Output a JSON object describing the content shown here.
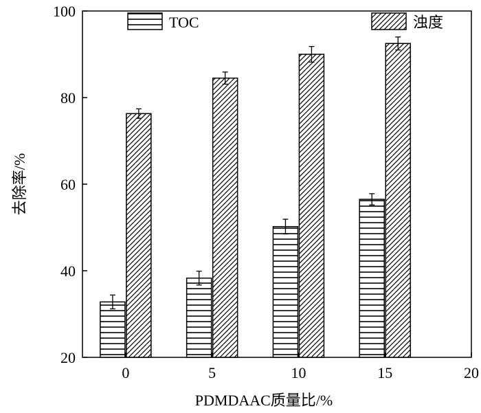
{
  "chart_data": {
    "type": "bar",
    "xlabel": "PDMDAAC质量比/%",
    "ylabel": "去除率/%",
    "ylim": [
      20,
      100
    ],
    "xlim": [
      -2.5,
      20
    ],
    "yticks": [
      20,
      40,
      60,
      80,
      100
    ],
    "xticks": [
      0,
      5,
      10,
      15,
      20
    ],
    "categories": [
      0,
      5,
      10,
      15
    ],
    "grid": false,
    "legend_position": "top",
    "series": [
      {
        "name": "TOC",
        "pattern": "horizontal-lines",
        "values": [
          32.8,
          38.3,
          50.2,
          56.5
        ],
        "errors": [
          1.6,
          1.6,
          1.7,
          1.3
        ]
      },
      {
        "name": "浊度",
        "pattern": "diagonal-hatch",
        "values": [
          76.3,
          84.5,
          90.0,
          92.5
        ],
        "errors": [
          1.1,
          1.4,
          1.8,
          1.5
        ]
      }
    ]
  }
}
